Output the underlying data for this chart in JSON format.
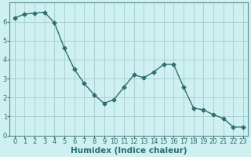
{
  "x": [
    0,
    1,
    2,
    3,
    4,
    5,
    6,
    7,
    8,
    9,
    10,
    11,
    12,
    13,
    14,
    15,
    16,
    17,
    18,
    19,
    20,
    21,
    22,
    23
  ],
  "y": [
    6.2,
    6.4,
    6.45,
    6.5,
    5.95,
    4.6,
    3.5,
    2.75,
    2.15,
    1.7,
    1.9,
    2.55,
    3.2,
    3.05,
    3.35,
    3.75,
    3.75,
    2.55,
    1.45,
    1.35,
    1.1,
    0.9,
    0.45,
    0.45
  ],
  "line_color": "#2e6e6e",
  "bg_color": "#cff0f0",
  "grid_color_major": "#aacfcf",
  "grid_color_minor": "#e8c8c8",
  "xlabel": "Humidex (Indice chaleur)",
  "xlim": [
    -0.5,
    23.5
  ],
  "ylim": [
    0,
    7
  ],
  "yticks": [
    0,
    1,
    2,
    3,
    4,
    5,
    6
  ],
  "xticks": [
    0,
    1,
    2,
    3,
    4,
    5,
    6,
    7,
    8,
    9,
    10,
    11,
    12,
    13,
    14,
    15,
    16,
    17,
    18,
    19,
    20,
    21,
    22,
    23
  ],
  "marker": "D",
  "marker_size": 2.5,
  "line_width": 1.0,
  "xlabel_fontsize": 7.5,
  "tick_fontsize": 6,
  "label_color": "#2e6e6e"
}
